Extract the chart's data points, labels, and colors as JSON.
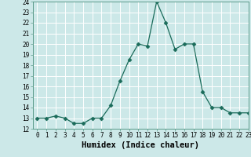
{
  "x": [
    0,
    1,
    2,
    3,
    4,
    5,
    6,
    7,
    8,
    9,
    10,
    11,
    12,
    13,
    14,
    15,
    16,
    17,
    18,
    19,
    20,
    21,
    22,
    23
  ],
  "y": [
    13,
    13,
    13.2,
    13,
    12.5,
    12.5,
    13,
    13,
    14.2,
    16.5,
    18.5,
    20,
    19.8,
    24,
    22,
    19.5,
    20,
    20,
    15.5,
    14,
    14,
    13.5,
    13.5,
    13.5
  ],
  "line_color": "#1a6b5a",
  "marker": "D",
  "marker_size": 2.5,
  "bg_color": "#cce8e8",
  "grid_color": "#ffffff",
  "xlabel": "Humidex (Indice chaleur)",
  "ylim": [
    12,
    24
  ],
  "xlim": [
    -0.5,
    23
  ],
  "yticks": [
    12,
    13,
    14,
    15,
    16,
    17,
    18,
    19,
    20,
    21,
    22,
    23,
    24
  ],
  "xticks": [
    0,
    1,
    2,
    3,
    4,
    5,
    6,
    7,
    8,
    9,
    10,
    11,
    12,
    13,
    14,
    15,
    16,
    17,
    18,
    19,
    20,
    21,
    22,
    23
  ],
  "tick_fontsize": 5.5,
  "xlabel_fontsize": 7.5,
  "spine_color": "#5a9a8a"
}
